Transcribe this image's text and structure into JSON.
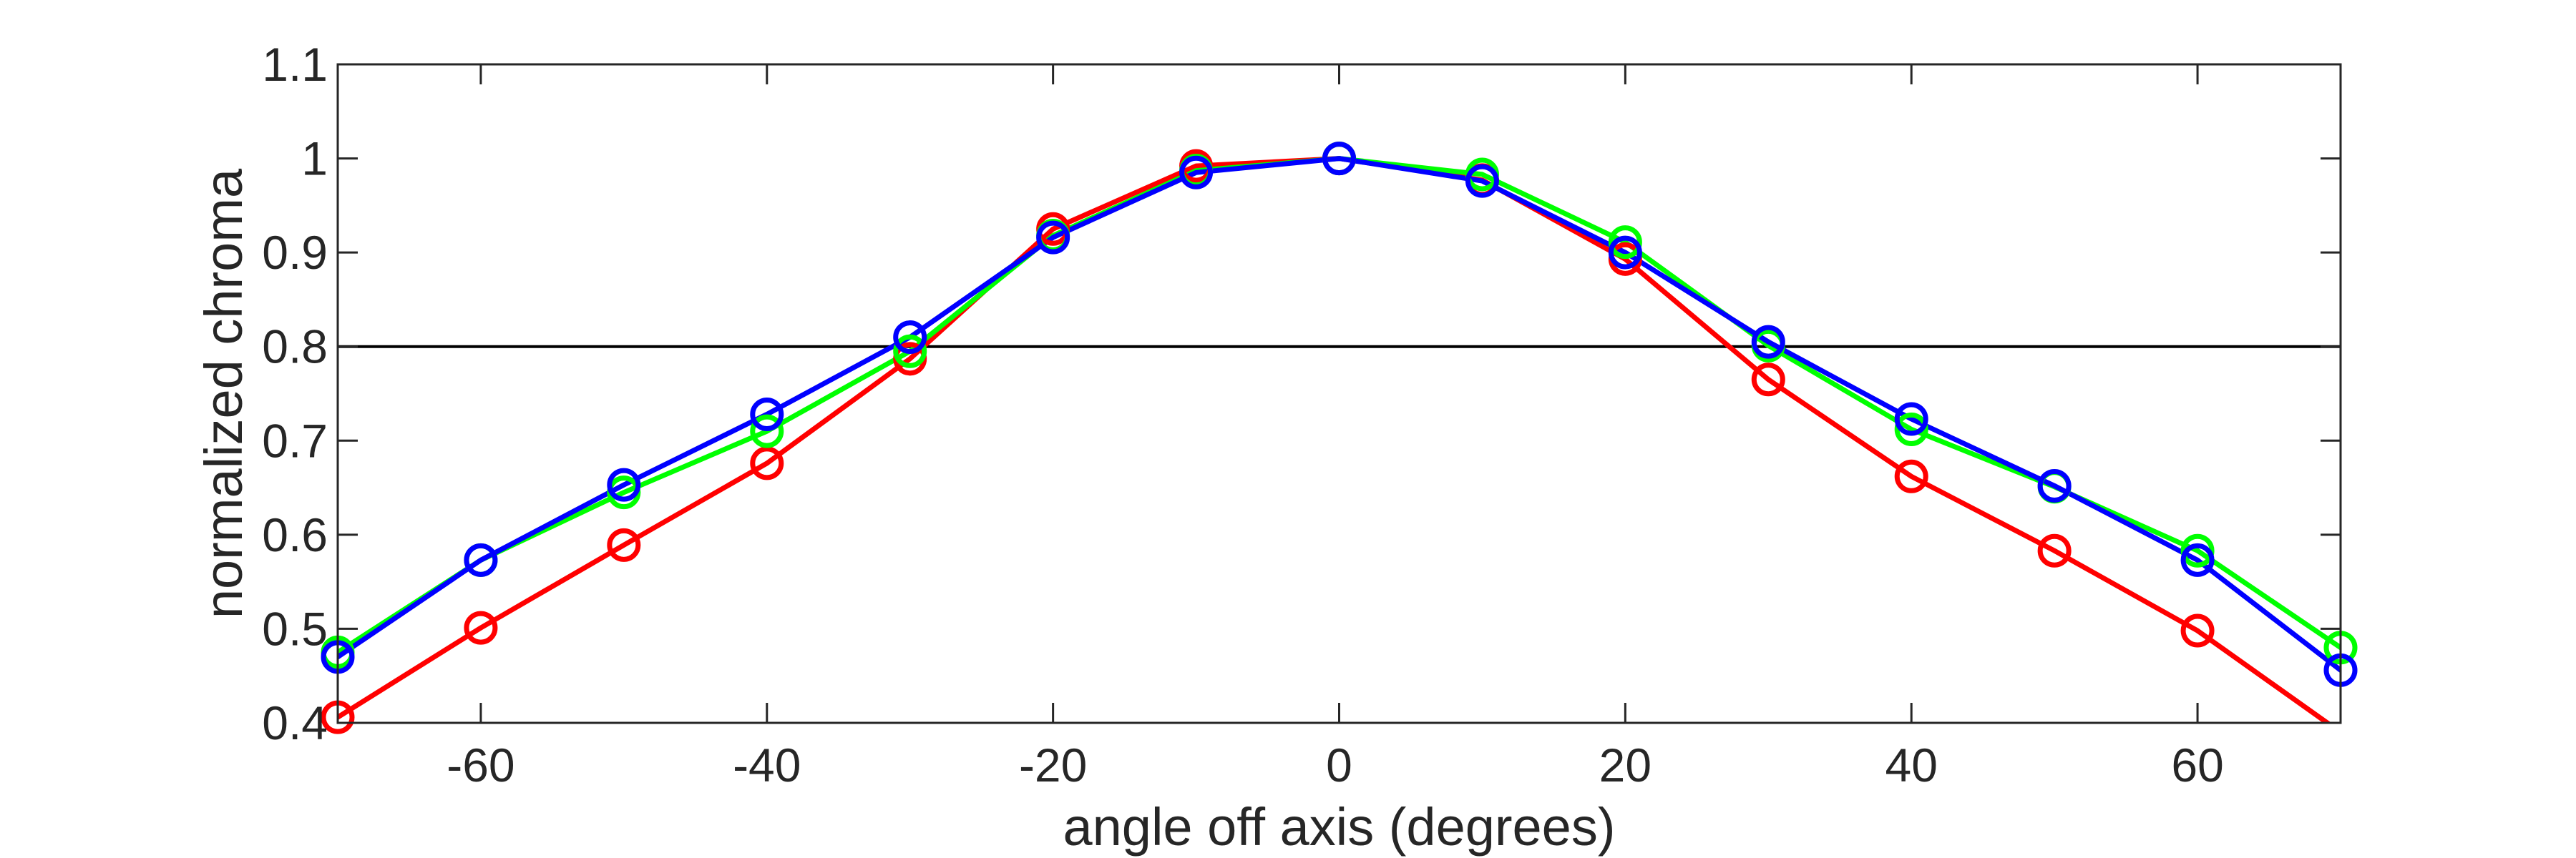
{
  "chart_data": {
    "type": "line",
    "title": "",
    "xlabel": "angle off axis (degrees)",
    "ylabel": "normalized chroma",
    "xlim": [
      -70,
      70
    ],
    "ylim": [
      0.4,
      1.1
    ],
    "xticks": [
      -60,
      -40,
      -20,
      0,
      20,
      40,
      60
    ],
    "xtick_labels": [
      "-60",
      "-40",
      "-20",
      "0",
      "20",
      "40",
      "60"
    ],
    "yticks": [
      0.4,
      0.5,
      0.6,
      0.7,
      0.8,
      0.9,
      1.0,
      1.1
    ],
    "ytick_labels": [
      "0.4",
      "0.5",
      "0.6",
      "0.7",
      "0.8",
      "0.9",
      "1",
      "1.1"
    ],
    "grid": false,
    "legend": "none",
    "reference_line": {
      "y": 0.8,
      "color": "#000000"
    },
    "x": [
      -70,
      -60,
      -50,
      -40,
      -30,
      -20,
      -10,
      0,
      10,
      20,
      30,
      40,
      50,
      60,
      70
    ],
    "series": [
      {
        "color": "#ff0000",
        "values": [
          0.406,
          0.501,
          0.589,
          0.676,
          0.787,
          0.925,
          0.992,
          1.0,
          0.977,
          0.893,
          0.765,
          0.662,
          0.583,
          0.498,
          0.39
        ]
      },
      {
        "color": "#00ff00",
        "values": [
          0.475,
          0.573,
          0.645,
          0.71,
          0.795,
          0.918,
          0.987,
          1.0,
          0.983,
          0.911,
          0.801,
          0.712,
          0.651,
          0.583,
          0.48
        ]
      },
      {
        "color": "#0000ff",
        "values": [
          0.47,
          0.573,
          0.653,
          0.728,
          0.81,
          0.916,
          0.985,
          1.0,
          0.976,
          0.9,
          0.805,
          0.723,
          0.652,
          0.573,
          0.456
        ]
      }
    ]
  }
}
